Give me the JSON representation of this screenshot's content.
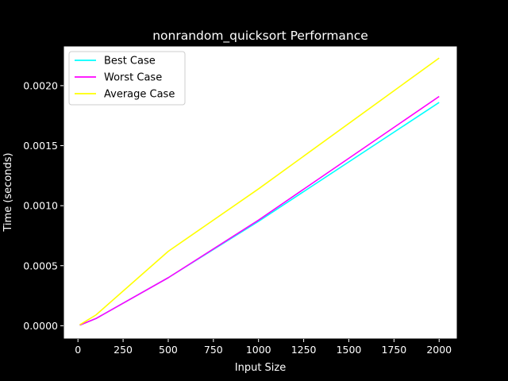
{
  "chart_data": {
    "type": "line",
    "title": "nonrandom_quicksort Performance",
    "xlabel": "Input Size",
    "ylabel": "Time (seconds)",
    "xlim": [
      -80,
      2100
    ],
    "ylim": [
      -0.00011,
      0.00233
    ],
    "xticks": [
      0,
      250,
      500,
      750,
      1000,
      1250,
      1500,
      1750,
      2000
    ],
    "yticks": [
      0.0,
      0.0005,
      0.001,
      0.0015,
      0.002
    ],
    "xtick_labels": [
      "0",
      "250",
      "500",
      "750",
      "1000",
      "1250",
      "1500",
      "1750",
      "2000"
    ],
    "ytick_labels": [
      "0.0000",
      "0.0005",
      "0.0010",
      "0.0015",
      "0.0020"
    ],
    "grid": false,
    "legend_position": "top-left",
    "x": [
      10,
      100,
      500,
      1000,
      2000
    ],
    "series": [
      {
        "name": "Best Case",
        "color": "#00ffff",
        "values": [
          5e-06,
          6e-05,
          0.0004,
          0.00087,
          0.00186
        ]
      },
      {
        "name": "Worst Case",
        "color": "#ff00ff",
        "values": [
          5e-06,
          6e-05,
          0.0004,
          0.00088,
          0.00191
        ]
      },
      {
        "name": "Average Case",
        "color": "#ffff00",
        "values": [
          8e-06,
          9e-05,
          0.00062,
          0.00114,
          0.00223
        ]
      }
    ]
  }
}
